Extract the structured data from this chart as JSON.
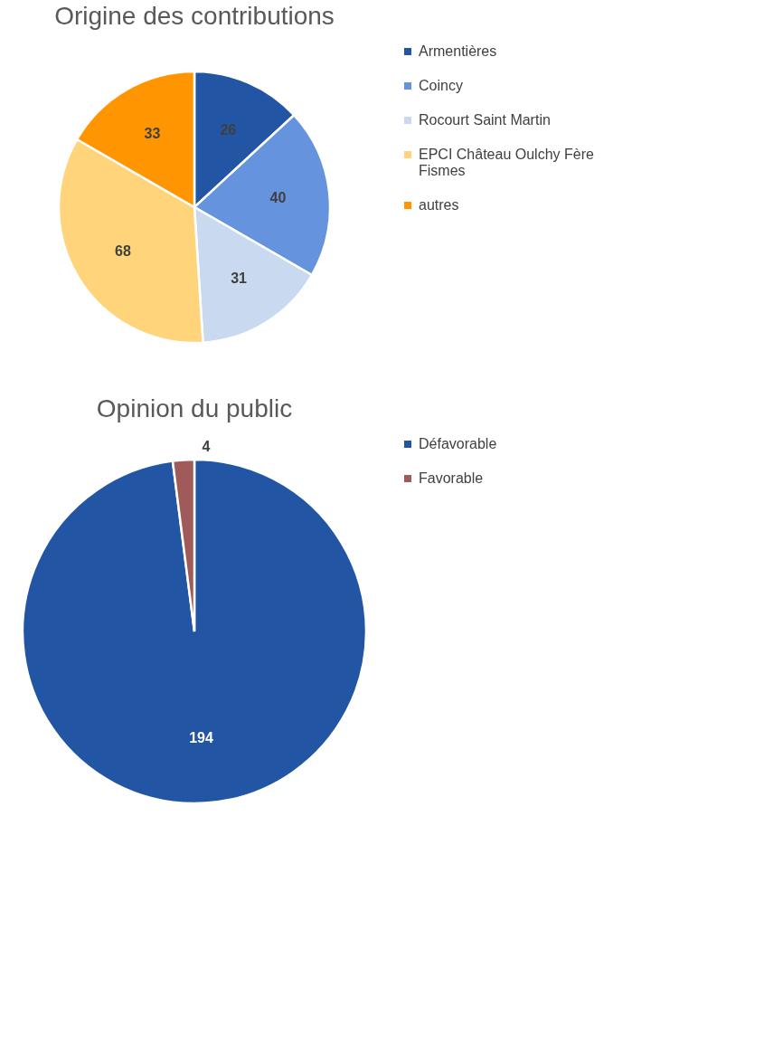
{
  "chart_data": [
    {
      "type": "pie",
      "title": "Origine des contributions",
      "categories": [
        "Armentières",
        "Coincy",
        "Rocourt Saint Martin",
        "EPCI Château Oulchy Fère Fismes",
        "autres"
      ],
      "values": [
        26,
        40,
        31,
        68,
        33
      ],
      "colors": [
        "#2355a5",
        "#6593de",
        "#c9d9f0",
        "#ffd47a",
        "#ff9500"
      ],
      "data_labels": true,
      "legend": "right"
    },
    {
      "type": "pie",
      "title": "Opinion du public",
      "categories": [
        "Défavorable",
        "Favorable"
      ],
      "values": [
        194,
        4
      ],
      "colors": [
        "#2255a4",
        "#a05a5a"
      ],
      "data_labels": true,
      "legend": "right"
    }
  ]
}
